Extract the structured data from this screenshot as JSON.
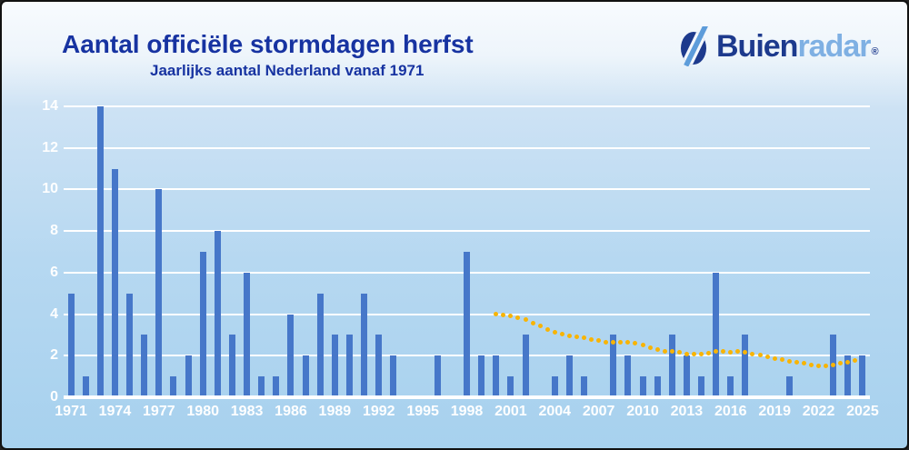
{
  "header": {
    "title": "Aantal officiële stormdagen herfst",
    "subtitle": "Jaarlijks aantal Nederland vanaf 1971"
  },
  "logo": {
    "text_dark": "Buien",
    "text_light": "radar",
    "registered": "®"
  },
  "colors": {
    "title_text": "#1733a1",
    "bar": "#4677c9",
    "trend": "#f8b405",
    "grid": "#ffffff",
    "axis_text": "#ffffff",
    "logo_dark": "#1d3a8d",
    "logo_light": "#7fb0e3",
    "bg_top": "#f7fafd",
    "bg_bottom": "#a7d1ee"
  },
  "chart_data": {
    "type": "bar",
    "title": "Aantal officiële stormdagen herfst",
    "subtitle": "Jaarlijks aantal Nederland vanaf 1971",
    "xlabel": "",
    "ylabel": "",
    "grid": true,
    "legend": "none",
    "ylim": [
      0,
      14
    ],
    "y_ticks": [
      0,
      2,
      4,
      6,
      8,
      10,
      12,
      14
    ],
    "x": [
      1971,
      1972,
      1973,
      1974,
      1975,
      1976,
      1977,
      1978,
      1979,
      1980,
      1981,
      1982,
      1983,
      1984,
      1985,
      1986,
      1987,
      1988,
      1989,
      1990,
      1991,
      1992,
      1993,
      1994,
      1995,
      1996,
      1997,
      1998,
      1999,
      2000,
      2001,
      2002,
      2003,
      2004,
      2005,
      2006,
      2007,
      2008,
      2009,
      2010,
      2011,
      2012,
      2013,
      2014,
      2015,
      2016,
      2017,
      2018,
      2019,
      2020,
      2021,
      2022,
      2023,
      2024,
      2025
    ],
    "values": [
      5,
      1,
      14,
      11,
      5,
      3,
      10,
      1,
      2,
      7,
      8,
      3,
      6,
      1,
      1,
      4,
      2,
      5,
      3,
      3,
      5,
      3,
      2,
      0,
      0,
      2,
      0,
      7,
      2,
      2,
      1,
      3,
      0,
      1,
      2,
      1,
      0,
      3,
      2,
      1,
      1,
      3,
      2,
      1,
      6,
      1,
      3,
      0,
      0,
      1,
      0,
      0,
      3,
      2,
      2
    ],
    "x_tick_labels": [
      "1971",
      "1974",
      "1977",
      "1980",
      "1983",
      "1986",
      "1989",
      "1992",
      "1995",
      "1998",
      "2001",
      "2004",
      "2007",
      "2010",
      "2013",
      "2016",
      "2019",
      "2022",
      "2025"
    ],
    "trend": {
      "name": "trend-dotted-line",
      "style": "dotted",
      "points": [
        [
          2000.0,
          4.0
        ],
        [
          2000.5,
          3.95
        ],
        [
          2001.0,
          3.9
        ],
        [
          2001.5,
          3.83
        ],
        [
          2002.0,
          3.72
        ],
        [
          2002.5,
          3.58
        ],
        [
          2003.0,
          3.43
        ],
        [
          2003.5,
          3.28
        ],
        [
          2004.0,
          3.15
        ],
        [
          2004.5,
          3.05
        ],
        [
          2005.0,
          2.97
        ],
        [
          2005.5,
          2.92
        ],
        [
          2006.0,
          2.87
        ],
        [
          2006.5,
          2.8
        ],
        [
          2007.0,
          2.72
        ],
        [
          2007.5,
          2.65
        ],
        [
          2008.0,
          2.63
        ],
        [
          2008.5,
          2.65
        ],
        [
          2009.0,
          2.65
        ],
        [
          2009.5,
          2.6
        ],
        [
          2010.0,
          2.5
        ],
        [
          2010.5,
          2.4
        ],
        [
          2011.0,
          2.28
        ],
        [
          2011.5,
          2.22
        ],
        [
          2012.0,
          2.22
        ],
        [
          2012.5,
          2.17
        ],
        [
          2013.0,
          2.1
        ],
        [
          2013.5,
          2.06
        ],
        [
          2014.0,
          2.08
        ],
        [
          2014.5,
          2.14
        ],
        [
          2015.0,
          2.22
        ],
        [
          2015.5,
          2.2
        ],
        [
          2016.0,
          2.18
        ],
        [
          2016.5,
          2.2
        ],
        [
          2017.0,
          2.16
        ],
        [
          2017.5,
          2.1
        ],
        [
          2018.0,
          2.02
        ],
        [
          2018.5,
          1.95
        ],
        [
          2019.0,
          1.88
        ],
        [
          2019.5,
          1.82
        ],
        [
          2020.0,
          1.75
        ],
        [
          2020.5,
          1.68
        ],
        [
          2021.0,
          1.62
        ],
        [
          2021.5,
          1.57
        ],
        [
          2022.0,
          1.53
        ],
        [
          2022.5,
          1.53
        ],
        [
          2023.0,
          1.57
        ],
        [
          2023.5,
          1.63
        ],
        [
          2024.0,
          1.7
        ],
        [
          2024.5,
          1.77
        ]
      ]
    }
  }
}
